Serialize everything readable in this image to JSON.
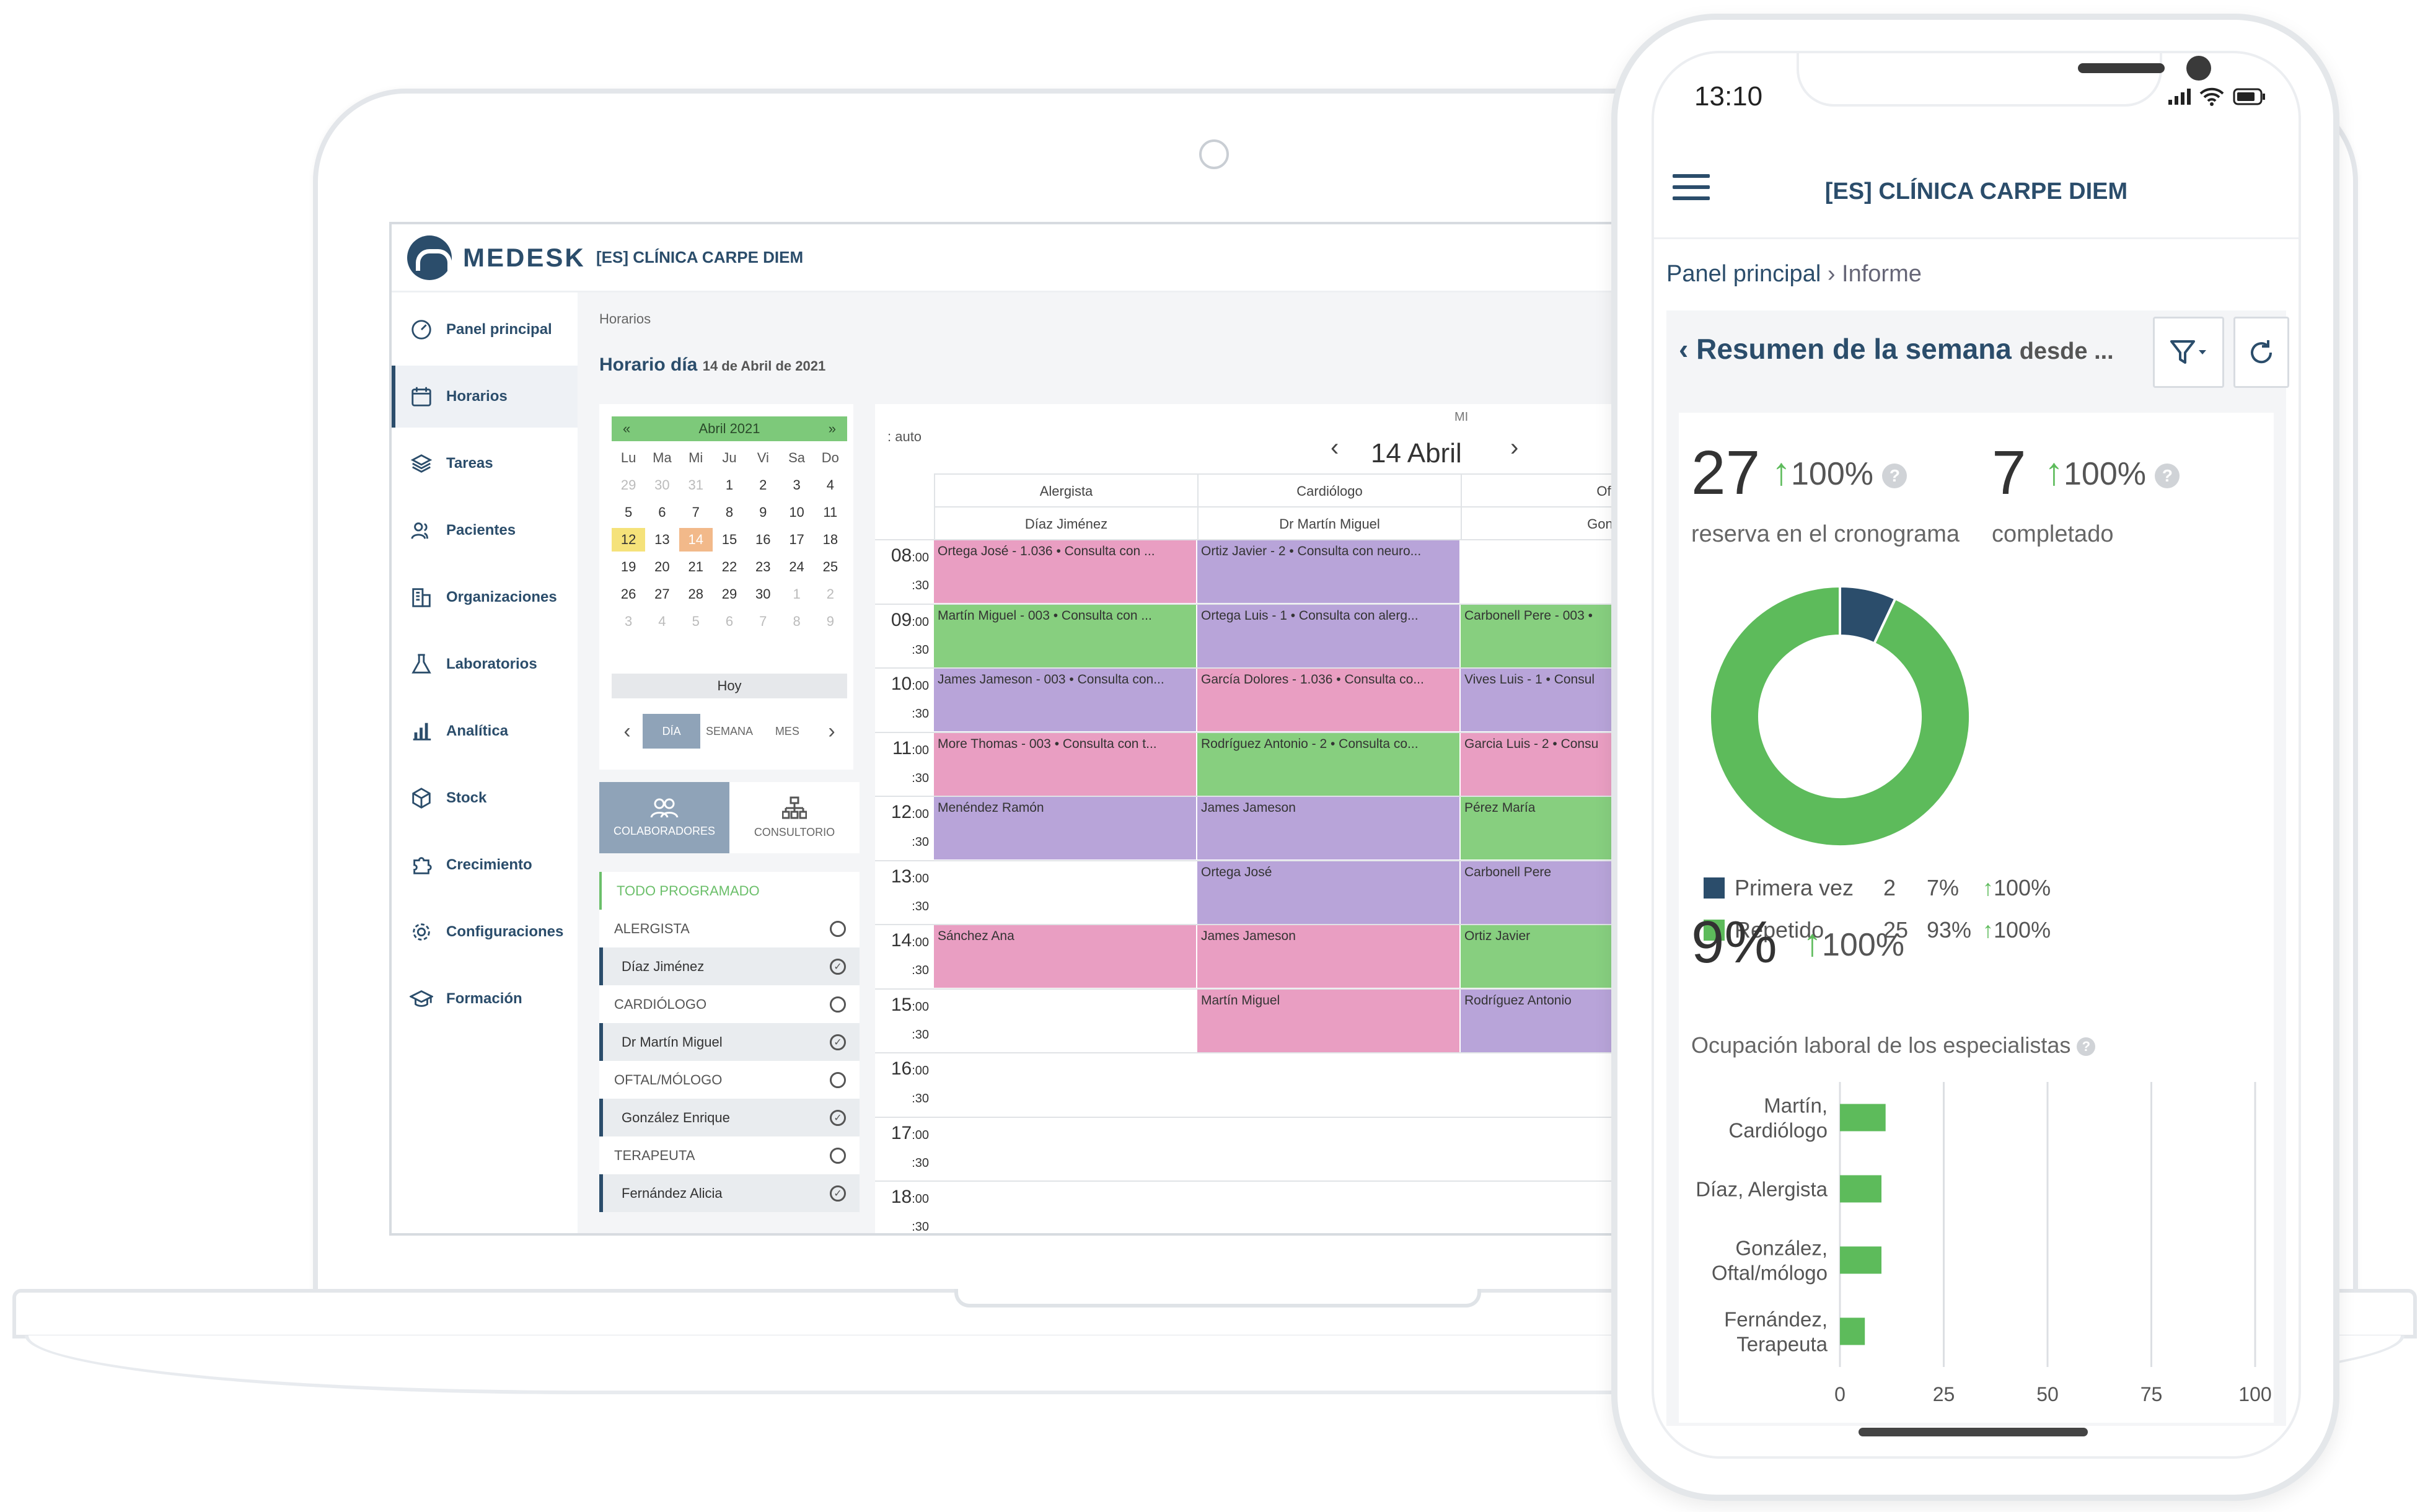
{
  "desktop": {
    "logo_text": "MEDESK",
    "clinic_name": "[ES] CLÍNICA CARPE DIEM",
    "sidebar": {
      "items": [
        {
          "label": "Panel principal",
          "icon": "dashboard-icon"
        },
        {
          "label": "Horarios",
          "icon": "calendar-icon",
          "active": true
        },
        {
          "label": "Tareas",
          "icon": "layers-icon"
        },
        {
          "label": "Pacientes",
          "icon": "users-icon"
        },
        {
          "label": "Organizaciones",
          "icon": "buildings-icon"
        },
        {
          "label": "Laboratorios",
          "icon": "lab-icon"
        },
        {
          "label": "Analítica",
          "icon": "bar-chart-icon"
        },
        {
          "label": "Stock",
          "icon": "box-icon"
        },
        {
          "label": "Crecimiento",
          "icon": "puzzle-icon"
        },
        {
          "label": "Configuraciones",
          "icon": "gear-icon"
        },
        {
          "label": "Formación",
          "icon": "graduation-cap-icon"
        }
      ]
    },
    "breadcrumb": "Horarios",
    "page_title": "Horario día",
    "page_date": "14 de Abril de 2021",
    "mini_calendar": {
      "prev": "«",
      "next": "»",
      "month": "Abril 2021",
      "dow": [
        "Lu",
        "Ma",
        "Mi",
        "Ju",
        "Vi",
        "Sa",
        "Do"
      ],
      "weeks": [
        [
          "29",
          "30",
          "31",
          "1",
          "2",
          "3",
          "4"
        ],
        [
          "5",
          "6",
          "7",
          "8",
          "9",
          "10",
          "11"
        ],
        [
          "12",
          "13",
          "14",
          "15",
          "16",
          "17",
          "18"
        ],
        [
          "19",
          "20",
          "21",
          "22",
          "23",
          "24",
          "25"
        ],
        [
          "26",
          "27",
          "28",
          "29",
          "30",
          "1",
          "2"
        ],
        [
          "3",
          "4",
          "5",
          "6",
          "7",
          "8",
          "9"
        ]
      ],
      "today_button": "Hoy",
      "views": [
        "DÍA",
        "SEMANA",
        "MES"
      ]
    },
    "mode_tabs": [
      "COLABORADORES",
      "CONSULTORIO"
    ],
    "filters": {
      "all": "TODO PROGRAMADO",
      "groups": [
        {
          "specialty": "ALERGISTA",
          "doctor": "Díaz Jiménez"
        },
        {
          "specialty": "CARDIÓLOGO",
          "doctor": "Dr Martín Miguel"
        },
        {
          "specialty": "OFTAL/MÓLOGO",
          "doctor": "González Enrique"
        },
        {
          "specialty": "TERAPEUTA",
          "doctor": "Fernández Alicia"
        }
      ]
    },
    "schedule": {
      "auto_label": ": auto",
      "day_of_week": "MI",
      "day": "14 Abril",
      "columns": [
        {
          "specialty": "Alergista",
          "doctor": "Díaz Jiménez"
        },
        {
          "specialty": "Cardiólogo",
          "doctor": "Dr Martín Miguel"
        },
        {
          "specialty": "Oftal/mó",
          "doctor": "González E"
        }
      ],
      "hours": [
        "08",
        "09",
        "10",
        "11",
        "12",
        "13",
        "14",
        "15",
        "16",
        "17",
        "18"
      ],
      "appointments": [
        {
          "col": 0,
          "row": 0,
          "color": "pink",
          "text": "Ortega José - 1.036 • Consulta con ..."
        },
        {
          "col": 1,
          "row": 0,
          "color": "purple",
          "text": "Ortiz Javier - 2 • Consulta con neuro..."
        },
        {
          "col": 0,
          "row": 1,
          "color": "green",
          "text": "Martín Miguel - 003 • Consulta con ..."
        },
        {
          "col": 1,
          "row": 1,
          "color": "purple",
          "text": "Ortega Luis - 1 • Consulta con alerg..."
        },
        {
          "col": 2,
          "row": 1,
          "color": "green",
          "text": "Carbonell Pere - 003 •"
        },
        {
          "col": 0,
          "row": 2,
          "color": "purple",
          "text": "James Jameson - 003 • Consulta con..."
        },
        {
          "col": 1,
          "row": 2,
          "color": "pink",
          "text": "García Dolores - 1.036 • Consulta co..."
        },
        {
          "col": 2,
          "row": 2,
          "color": "purple",
          "text": "Vives Luis - 1 • Consul"
        },
        {
          "col": 0,
          "row": 3,
          "color": "pink",
          "text": "More Thomas - 003 • Consulta con t..."
        },
        {
          "col": 1,
          "row": 3,
          "color": "green",
          "text": "Rodríguez Antonio - 2 • Consulta co..."
        },
        {
          "col": 2,
          "row": 3,
          "color": "pink",
          "text": "Garcia Luis - 2 • Consu"
        },
        {
          "col": 0,
          "row": 4,
          "color": "purple",
          "text": "Menéndez Ramón"
        },
        {
          "col": 1,
          "row": 4,
          "color": "purple",
          "text": "James Jameson"
        },
        {
          "col": 2,
          "row": 4,
          "color": "green",
          "text": "Pérez María"
        },
        {
          "col": 1,
          "row": 5,
          "color": "purple",
          "text": "Ortega José"
        },
        {
          "col": 2,
          "row": 5,
          "color": "purple",
          "text": "Carbonell Pere"
        },
        {
          "col": 0,
          "row": 6,
          "color": "pink",
          "text": "Sánchez Ana"
        },
        {
          "col": 1,
          "row": 6,
          "color": "pink",
          "text": "James Jameson"
        },
        {
          "col": 2,
          "row": 6,
          "color": "green",
          "text": "Ortiz Javier"
        },
        {
          "col": 1,
          "row": 7,
          "color": "pink",
          "text": "Martín Miguel"
        },
        {
          "col": 2,
          "row": 7,
          "color": "purple",
          "text": "Rodríguez Antonio"
        }
      ],
      "colors": {
        "pink": "#e99ec2",
        "purple": "#b8a4d9",
        "green": "#87cf7f"
      }
    }
  },
  "mobile": {
    "status_time": "13:10",
    "clinic_name": "[ES] CLÍNICA CARPE DIEM",
    "breadcrumb": {
      "link": "Panel principal",
      "current": "Informe"
    },
    "summary_title": "Resumen de la semana",
    "summary_suffix": "desde ...",
    "kpis": [
      {
        "value": "27",
        "change": "100%",
        "label": "reserva en el cronograma"
      },
      {
        "value": "7",
        "change": "100%",
        "label": "completado"
      }
    ],
    "donut": {
      "segments": [
        {
          "name": "Primera vez",
          "count": "2",
          "share": "7%",
          "change": "100%",
          "color": "#2b4d6b",
          "fraction": 0.07
        },
        {
          "name": "Repetido",
          "count": "25",
          "share": "93%",
          "change": "100%",
          "color": "#5dbb5b",
          "fraction": 0.93
        }
      ]
    },
    "occupancy": {
      "value": "9%",
      "change": "100%",
      "label": "Ocupación laboral de los especialistas"
    },
    "chart_data": {
      "type": "bar",
      "orientation": "horizontal",
      "categories": [
        [
          "Martín,",
          "Cardiólogo"
        ],
        [
          "Díaz, Alergista"
        ],
        [
          "González,",
          "Oftal/mólogo"
        ],
        [
          "Fernández,",
          "Terapeuta"
        ]
      ],
      "values": [
        11,
        10,
        10,
        6
      ],
      "xticks": [
        "0",
        "25",
        "50",
        "75",
        "100"
      ],
      "xlim": [
        0,
        100
      ],
      "color": "#5dbb5b",
      "grid": true
    }
  }
}
